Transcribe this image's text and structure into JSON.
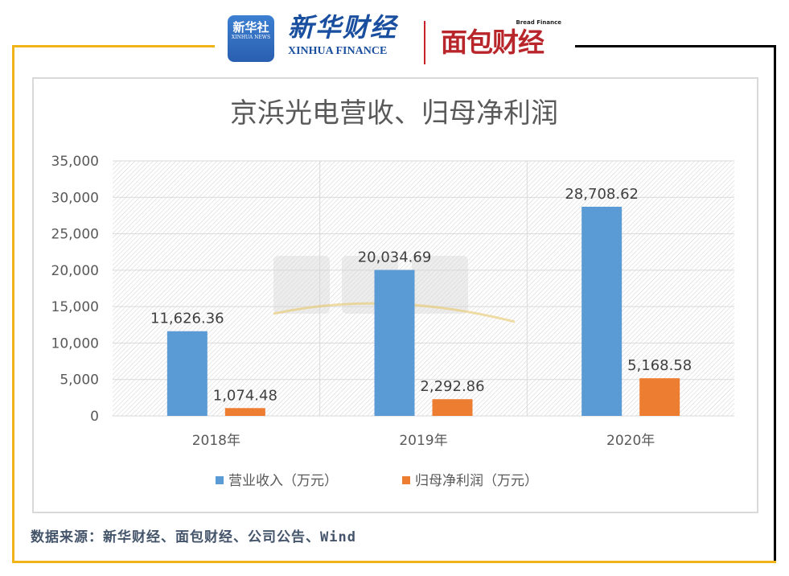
{
  "header": {
    "logo_xinhua_news": "新华社",
    "logo_xinhua_news_en": "XINHUA NEWS",
    "logo_xinhua_finance": "新华财经",
    "logo_xinhua_finance_en": "XINHUA FINANCE",
    "logo_bread_finance": "面包财经",
    "logo_bread_finance_en": "Bread Finance"
  },
  "source": "数据来源：新华财经、面包财经、公司公告、Wind",
  "chart_data": {
    "type": "bar",
    "title": "京浜光电营收、归母净利润",
    "categories": [
      "2018年",
      "2019年",
      "2020年"
    ],
    "series": [
      {
        "name": "营业收入（万元）",
        "color": "#5b9bd5",
        "values": [
          11626.36,
          20034.69,
          28708.62
        ],
        "labels": [
          "11,626.36",
          "20,034.69",
          "28,708.62"
        ]
      },
      {
        "name": "归母净利润（万元）",
        "color": "#ed7d31",
        "values": [
          1074.48,
          2292.86,
          5168.58
        ],
        "labels": [
          "1,074.48",
          "2,292.86",
          "5,168.58"
        ]
      }
    ],
    "ylim": [
      0,
      35000
    ],
    "yticks": [
      "0",
      "5,000",
      "10,000",
      "15,000",
      "20,000",
      "25,000",
      "30,000",
      "35,000"
    ],
    "legend": "bottom",
    "grid": true,
    "watermark": "看新股"
  }
}
